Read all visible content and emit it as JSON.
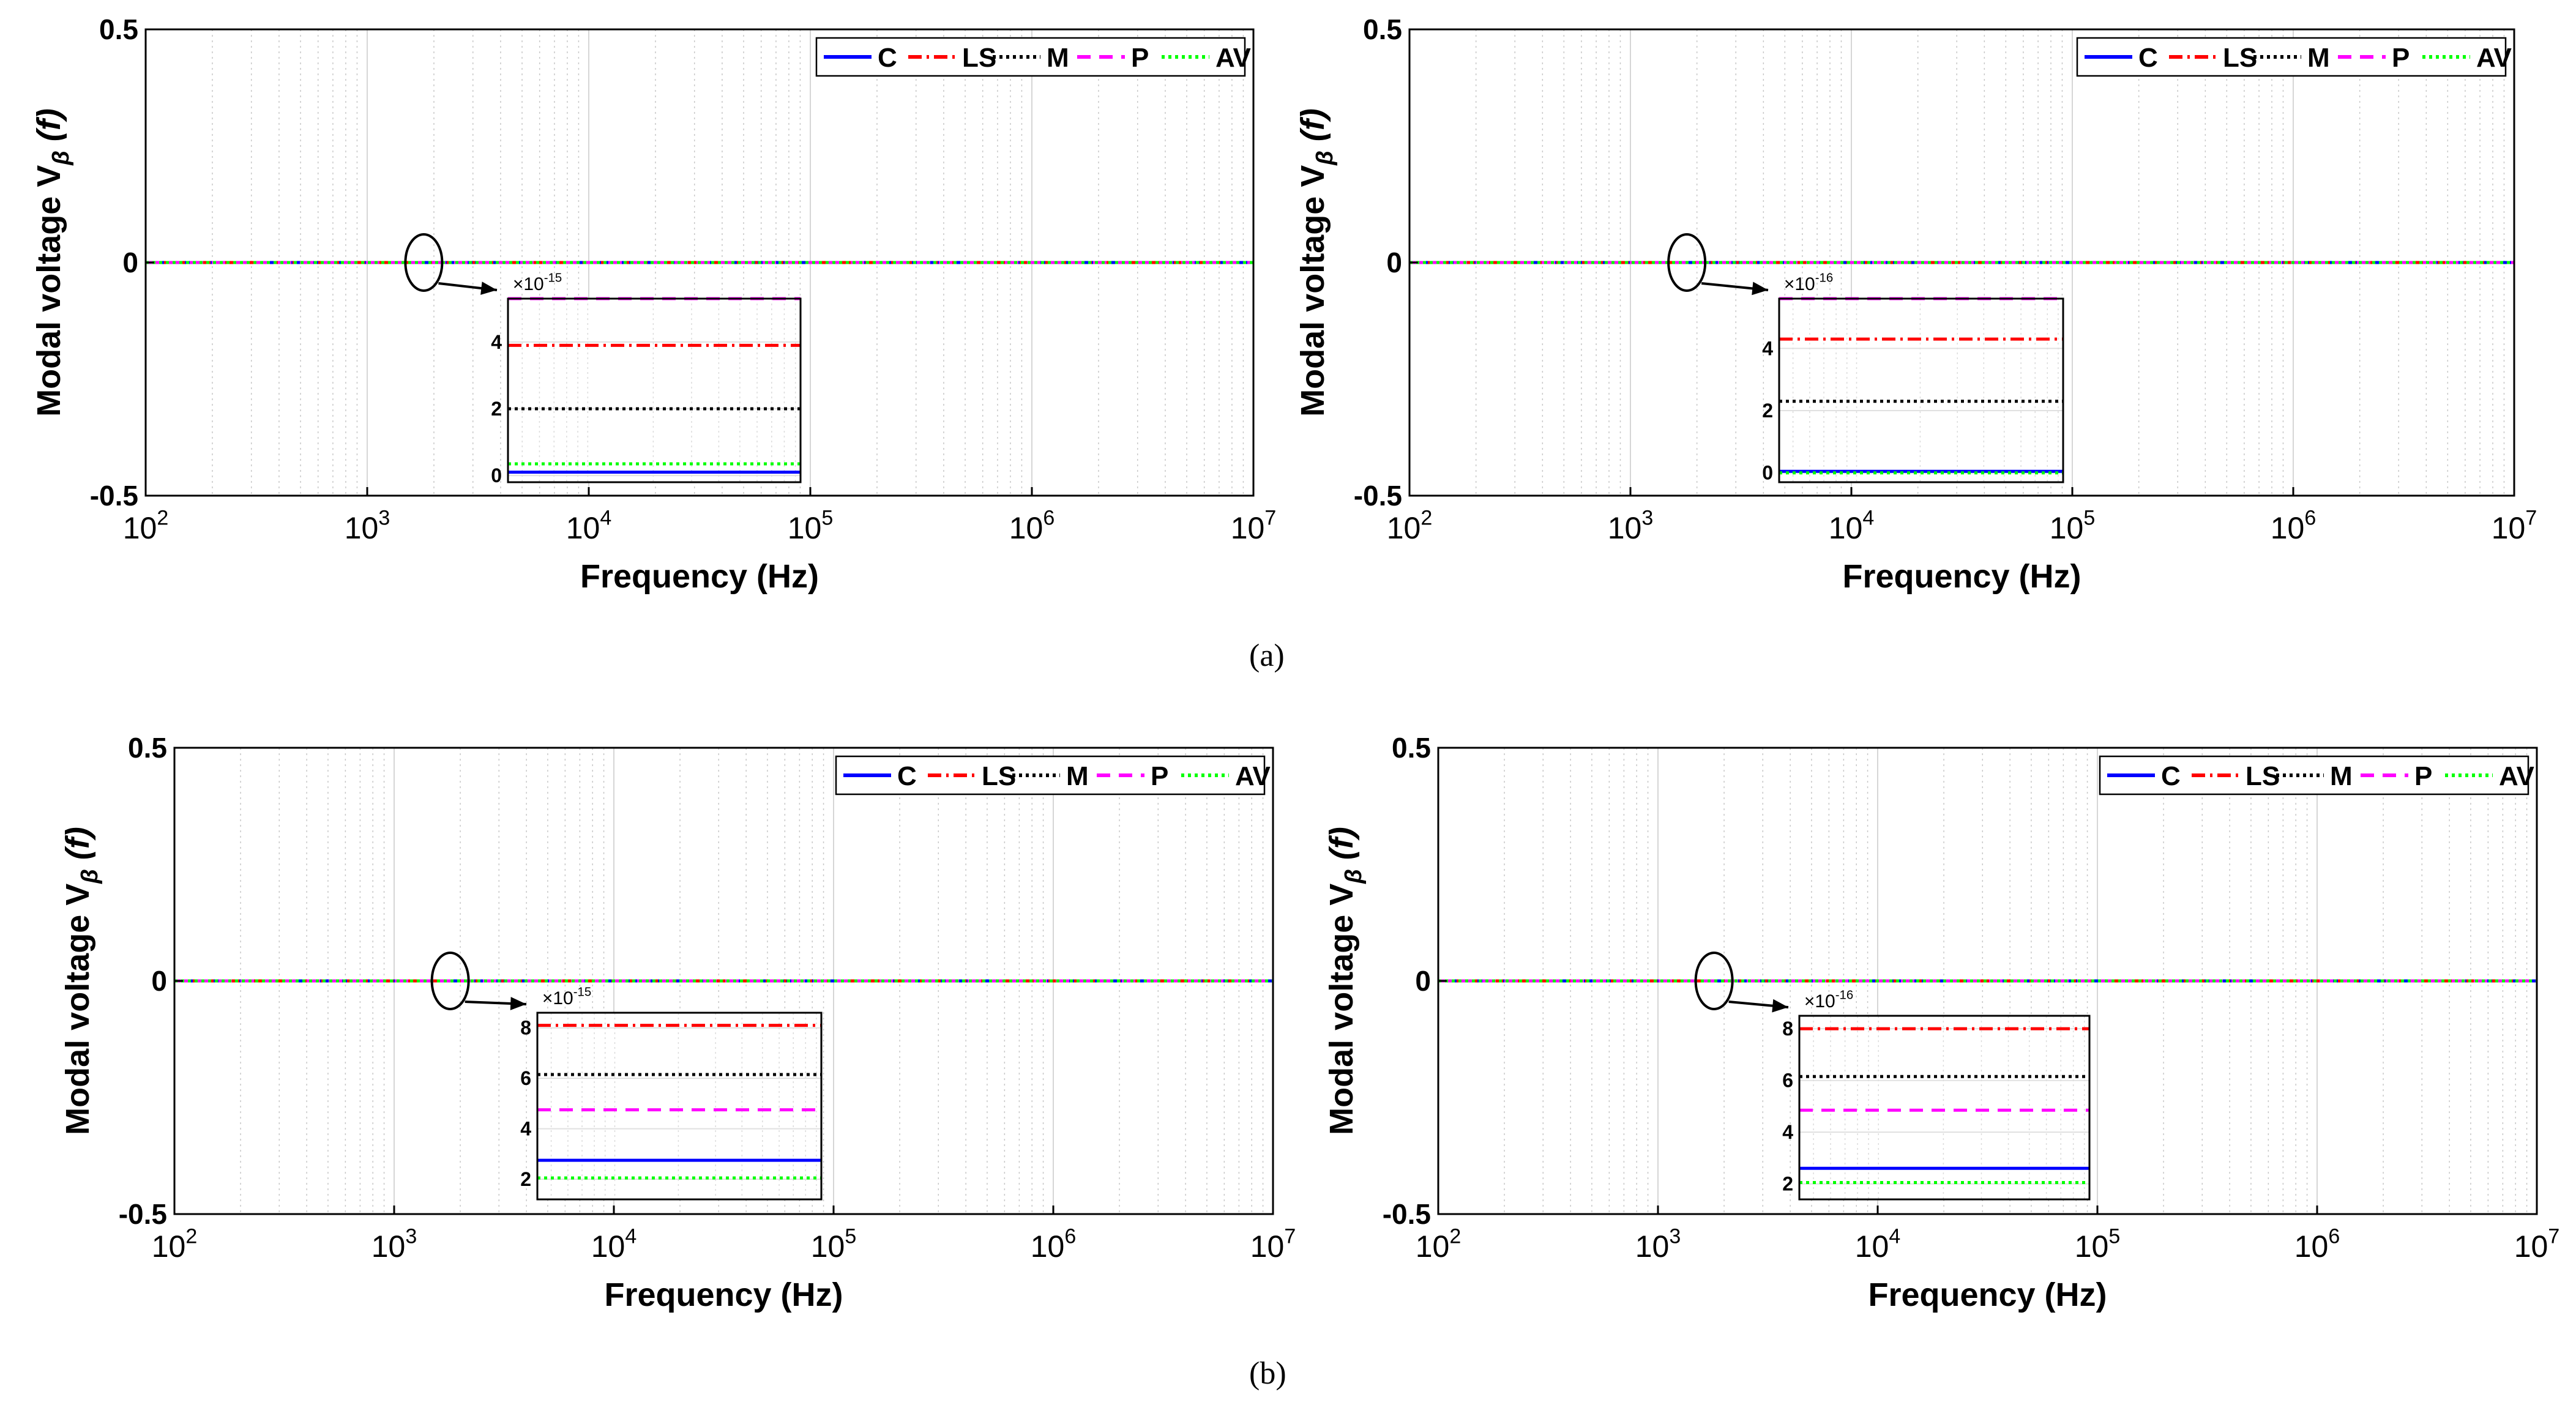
{
  "figure": {
    "panel_labels": [
      "(a)",
      "(b)"
    ]
  },
  "legend": {
    "entries": [
      {
        "name": "C",
        "color": "#0000ff",
        "dash": "solid"
      },
      {
        "name": "LS",
        "color": "#ff0000",
        "dash": "dashdot"
      },
      {
        "name": "M",
        "color": "#000000",
        "dash": "dotted"
      },
      {
        "name": "P",
        "color": "#ff00ff",
        "dash": "dashed"
      },
      {
        "name": "AV",
        "color": "#00ff00",
        "dash": "dotted"
      }
    ]
  },
  "chart_data": [
    {
      "type": "line",
      "panel": "(a)",
      "position": "left",
      "xlabel": "Frequency (Hz)",
      "ylabel": "Modal voltage V_β (f)",
      "xscale": "log",
      "xlim": [
        100,
        10000000
      ],
      "ylim": [
        -0.5,
        0.5
      ],
      "yticks": [
        "0.5",
        "0",
        "-0.5"
      ],
      "xticks": [
        "10^2",
        "10^3",
        "10^4",
        "10^5",
        "10^6",
        "10^7"
      ],
      "legend_location": "top-right",
      "series": [
        {
          "name": "C",
          "value": 0
        },
        {
          "name": "LS",
          "value": 0
        },
        {
          "name": "M",
          "value": 0
        },
        {
          "name": "P",
          "value": 0
        },
        {
          "name": "AV",
          "value": 0
        }
      ],
      "inset": {
        "zoom_frequency": 1800,
        "exponent": "×10^-15",
        "ylim": [
          -0.2,
          5.3
        ],
        "yticks": [
          "0",
          "2",
          "4"
        ],
        "series": [
          {
            "name": "C",
            "value": 0.1
          },
          {
            "name": "LS",
            "value": 3.9
          },
          {
            "name": "M",
            "value": 2.0
          },
          {
            "name": "P",
            "value": 5.3
          },
          {
            "name": "AV",
            "value": 0.35
          }
        ]
      }
    },
    {
      "type": "line",
      "panel": "(a)",
      "position": "right",
      "xlabel": "Frequency (Hz)",
      "ylabel": "Modal voltage V_β (f)",
      "xscale": "log",
      "xlim": [
        100,
        10000000
      ],
      "ylim": [
        -0.5,
        0.5
      ],
      "yticks": [
        "0.5",
        "0",
        "-0.5"
      ],
      "xticks": [
        "10^2",
        "10^3",
        "10^4",
        "10^5",
        "10^6",
        "10^7"
      ],
      "legend_location": "top-right",
      "series": [
        {
          "name": "C",
          "value": 0
        },
        {
          "name": "LS",
          "value": 0
        },
        {
          "name": "M",
          "value": 0
        },
        {
          "name": "P",
          "value": 0
        },
        {
          "name": "AV",
          "value": 0
        }
      ],
      "inset": {
        "zoom_frequency": 1800,
        "exponent": "×10^-16",
        "ylim": [
          -0.3,
          5.6
        ],
        "yticks": [
          "0",
          "2",
          "4"
        ],
        "series": [
          {
            "name": "C",
            "value": 0.05
          },
          {
            "name": "LS",
            "value": 4.3
          },
          {
            "name": "M",
            "value": 2.3
          },
          {
            "name": "P",
            "value": 5.6
          },
          {
            "name": "AV",
            "value": 0.0
          }
        ]
      }
    },
    {
      "type": "line",
      "panel": "(b)",
      "position": "left",
      "xlabel": "Frequency (Hz)",
      "ylabel": "Modal voltage V_β (f)",
      "xscale": "log",
      "xlim": [
        100,
        10000000
      ],
      "ylim": [
        -0.5,
        0.5
      ],
      "yticks": [
        "0.5",
        "0",
        "-0.5"
      ],
      "xticks": [
        "10^2",
        "10^3",
        "10^4",
        "10^5",
        "10^6",
        "10^7"
      ],
      "legend_location": "top-right",
      "series": [
        {
          "name": "C",
          "value": 0
        },
        {
          "name": "LS",
          "value": 0
        },
        {
          "name": "M",
          "value": 0
        },
        {
          "name": "P",
          "value": 0
        },
        {
          "name": "AV",
          "value": 0
        }
      ],
      "inset": {
        "zoom_frequency": 1800,
        "exponent": "×10^-15",
        "ylim": [
          1.2,
          8.6
        ],
        "yticks": [
          "2",
          "4",
          "6",
          "8"
        ],
        "series": [
          {
            "name": "C",
            "value": 2.75
          },
          {
            "name": "LS",
            "value": 8.1
          },
          {
            "name": "M",
            "value": 6.15
          },
          {
            "name": "P",
            "value": 4.75
          },
          {
            "name": "AV",
            "value": 2.05
          }
        ]
      }
    },
    {
      "type": "line",
      "panel": "(b)",
      "position": "right",
      "xlabel": "Frequency (Hz)",
      "ylabel": "Modal voltage V_β (f)",
      "xscale": "log",
      "xlim": [
        100,
        10000000
      ],
      "ylim": [
        -0.5,
        0.5
      ],
      "yticks": [
        "0.5",
        "0",
        "-0.5"
      ],
      "xticks": [
        "10^2",
        "10^3",
        "10^4",
        "10^5",
        "10^6",
        "10^7"
      ],
      "legend_location": "top-right",
      "series": [
        {
          "name": "C",
          "value": 0
        },
        {
          "name": "LS",
          "value": 0
        },
        {
          "name": "M",
          "value": 0
        },
        {
          "name": "P",
          "value": 0
        },
        {
          "name": "AV",
          "value": 0
        }
      ],
      "inset": {
        "zoom_frequency": 1800,
        "exponent": "×10^-16",
        "ylim": [
          1.4,
          8.5
        ],
        "yticks": [
          "2",
          "4",
          "6",
          "8"
        ],
        "series": [
          {
            "name": "C",
            "value": 2.6
          },
          {
            "name": "LS",
            "value": 8.0
          },
          {
            "name": "M",
            "value": 6.15
          },
          {
            "name": "P",
            "value": 4.85
          },
          {
            "name": "AV",
            "value": 2.05
          }
        ]
      }
    }
  ]
}
